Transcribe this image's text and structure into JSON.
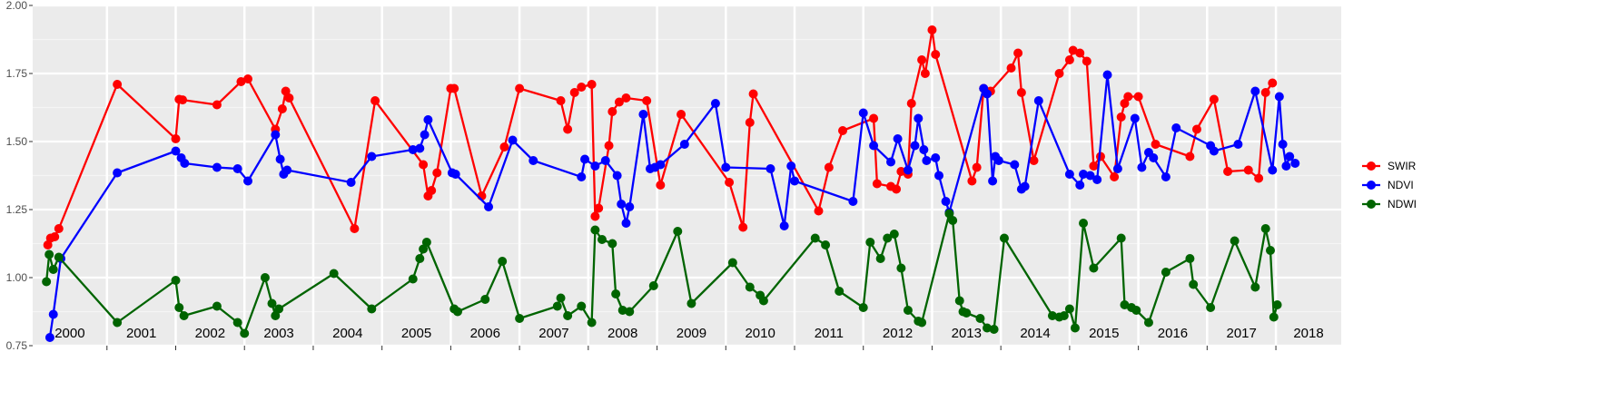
{
  "chart_data": {
    "type": "line",
    "title": "",
    "xlabel": "",
    "ylabel": "",
    "x_range": [
      1999.92,
      2018.95
    ],
    "ylim": [
      0.75,
      2.0
    ],
    "y_ticks": [
      0.75,
      1.0,
      1.25,
      1.5,
      1.75,
      2.0
    ],
    "y_tick_labels": [
      "0.75",
      "1.00",
      "1.25",
      "1.50",
      "1.75",
      "2.00"
    ],
    "year_boundaries": [
      2001,
      2002,
      2003,
      2004,
      2005,
      2006,
      2007,
      2008,
      2009,
      2010,
      2011,
      2012,
      2013,
      2014,
      2015,
      2016,
      2017,
      2018
    ],
    "year_labels": [
      {
        "x": 2000,
        "label": "2000"
      },
      {
        "x": 2001,
        "label": "2001"
      },
      {
        "x": 2002,
        "label": "2002"
      },
      {
        "x": 2003,
        "label": "2003"
      },
      {
        "x": 2004,
        "label": "2004"
      },
      {
        "x": 2005,
        "label": "2005"
      },
      {
        "x": 2006,
        "label": "2006"
      },
      {
        "x": 2007,
        "label": "2007"
      },
      {
        "x": 2008,
        "label": "2008"
      },
      {
        "x": 2009,
        "label": "2009"
      },
      {
        "x": 2010,
        "label": "2010"
      },
      {
        "x": 2011,
        "label": "2011"
      },
      {
        "x": 2012,
        "label": "2012"
      },
      {
        "x": 2013,
        "label": "2013"
      },
      {
        "x": 2014,
        "label": "2014"
      },
      {
        "x": 2015,
        "label": "2015"
      },
      {
        "x": 2016,
        "label": "2016"
      },
      {
        "x": 2017,
        "label": "2017"
      },
      {
        "x": 2018,
        "label": "2018"
      }
    ],
    "grid": true,
    "legend_position": "right",
    "series": [
      {
        "name": "SWIR",
        "color": "#ff0000",
        "points": [
          [
            2000.14,
            1.12
          ],
          [
            2000.18,
            1.145
          ],
          [
            2000.24,
            1.15
          ],
          [
            2000.3,
            1.18
          ],
          [
            2001.15,
            1.71
          ],
          [
            2002.0,
            1.51
          ],
          [
            2002.05,
            1.655
          ],
          [
            2002.1,
            1.653
          ],
          [
            2002.6,
            1.635
          ],
          [
            2002.95,
            1.72
          ],
          [
            2003.05,
            1.73
          ],
          [
            2003.45,
            1.545
          ],
          [
            2003.55,
            1.62
          ],
          [
            2003.6,
            1.685
          ],
          [
            2003.65,
            1.66
          ],
          [
            2004.6,
            1.18
          ],
          [
            2004.9,
            1.65
          ],
          [
            2005.6,
            1.415
          ],
          [
            2005.67,
            1.3
          ],
          [
            2005.72,
            1.32
          ],
          [
            2005.8,
            1.385
          ],
          [
            2006.0,
            1.695
          ],
          [
            2006.05,
            1.695
          ],
          [
            2006.45,
            1.3
          ],
          [
            2006.78,
            1.48
          ],
          [
            2007.0,
            1.695
          ],
          [
            2007.6,
            1.65
          ],
          [
            2007.7,
            1.545
          ],
          [
            2007.8,
            1.68
          ],
          [
            2007.9,
            1.7
          ],
          [
            2008.05,
            1.71
          ],
          [
            2008.1,
            1.225
          ],
          [
            2008.15,
            1.255
          ],
          [
            2008.3,
            1.485
          ],
          [
            2008.35,
            1.61
          ],
          [
            2008.45,
            1.645
          ],
          [
            2008.55,
            1.66
          ],
          [
            2008.85,
            1.65
          ],
          [
            2009.05,
            1.34
          ],
          [
            2009.35,
            1.6
          ],
          [
            2010.05,
            1.35
          ],
          [
            2010.25,
            1.185
          ],
          [
            2010.35,
            1.57
          ],
          [
            2010.4,
            1.675
          ],
          [
            2011.35,
            1.245
          ],
          [
            2011.5,
            1.405
          ],
          [
            2011.7,
            1.54
          ],
          [
            2012.15,
            1.585
          ],
          [
            2012.2,
            1.345
          ],
          [
            2012.4,
            1.335
          ],
          [
            2012.48,
            1.325
          ],
          [
            2012.55,
            1.39
          ],
          [
            2012.65,
            1.38
          ],
          [
            2012.7,
            1.64
          ],
          [
            2012.85,
            1.8
          ],
          [
            2012.9,
            1.75
          ],
          [
            2013.0,
            1.91
          ],
          [
            2013.05,
            1.82
          ],
          [
            2013.58,
            1.355
          ],
          [
            2013.65,
            1.405
          ],
          [
            2013.75,
            1.695
          ],
          [
            2013.85,
            1.685
          ],
          [
            2014.15,
            1.77
          ],
          [
            2014.25,
            1.825
          ],
          [
            2014.3,
            1.68
          ],
          [
            2014.48,
            1.43
          ],
          [
            2014.85,
            1.75
          ],
          [
            2015.0,
            1.8
          ],
          [
            2015.05,
            1.835
          ],
          [
            2015.15,
            1.825
          ],
          [
            2015.25,
            1.795
          ],
          [
            2015.35,
            1.41
          ],
          [
            2015.45,
            1.445
          ],
          [
            2015.65,
            1.37
          ],
          [
            2015.75,
            1.59
          ],
          [
            2015.8,
            1.64
          ],
          [
            2015.85,
            1.665
          ],
          [
            2016.0,
            1.665
          ],
          [
            2016.25,
            1.49
          ],
          [
            2016.75,
            1.445
          ],
          [
            2016.85,
            1.545
          ],
          [
            2017.1,
            1.655
          ],
          [
            2017.3,
            1.39
          ],
          [
            2017.6,
            1.395
          ],
          [
            2017.75,
            1.365
          ],
          [
            2017.85,
            1.68
          ],
          [
            2017.95,
            1.715
          ]
        ]
      },
      {
        "name": "NDVI",
        "color": "#0000ff",
        "points": [
          [
            2000.17,
            0.78
          ],
          [
            2000.22,
            0.865
          ],
          [
            2000.33,
            1.07
          ],
          [
            2001.15,
            1.385
          ],
          [
            2002.0,
            1.465
          ],
          [
            2002.08,
            1.44
          ],
          [
            2002.13,
            1.42
          ],
          [
            2002.6,
            1.405
          ],
          [
            2002.9,
            1.4
          ],
          [
            2003.05,
            1.355
          ],
          [
            2003.45,
            1.525
          ],
          [
            2003.52,
            1.435
          ],
          [
            2003.57,
            1.38
          ],
          [
            2003.62,
            1.395
          ],
          [
            2004.55,
            1.35
          ],
          [
            2004.85,
            1.445
          ],
          [
            2005.45,
            1.47
          ],
          [
            2005.55,
            1.475
          ],
          [
            2005.62,
            1.525
          ],
          [
            2005.67,
            1.58
          ],
          [
            2006.02,
            1.385
          ],
          [
            2006.07,
            1.38
          ],
          [
            2006.55,
            1.26
          ],
          [
            2006.9,
            1.505
          ],
          [
            2007.2,
            1.43
          ],
          [
            2007.9,
            1.37
          ],
          [
            2007.95,
            1.435
          ],
          [
            2008.1,
            1.41
          ],
          [
            2008.25,
            1.43
          ],
          [
            2008.42,
            1.375
          ],
          [
            2008.48,
            1.27
          ],
          [
            2008.55,
            1.2
          ],
          [
            2008.6,
            1.26
          ],
          [
            2008.8,
            1.6
          ],
          [
            2008.9,
            1.4
          ],
          [
            2008.97,
            1.405
          ],
          [
            2009.05,
            1.415
          ],
          [
            2009.4,
            1.49
          ],
          [
            2009.85,
            1.64
          ],
          [
            2010.0,
            1.405
          ],
          [
            2010.65,
            1.4
          ],
          [
            2010.85,
            1.19
          ],
          [
            2010.95,
            1.41
          ],
          [
            2011.0,
            1.355
          ],
          [
            2011.85,
            1.28
          ],
          [
            2012.0,
            1.605
          ],
          [
            2012.15,
            1.485
          ],
          [
            2012.4,
            1.425
          ],
          [
            2012.5,
            1.51
          ],
          [
            2012.65,
            1.395
          ],
          [
            2012.75,
            1.485
          ],
          [
            2012.8,
            1.585
          ],
          [
            2012.88,
            1.47
          ],
          [
            2012.92,
            1.43
          ],
          [
            2013.05,
            1.44
          ],
          [
            2013.1,
            1.375
          ],
          [
            2013.2,
            1.28
          ],
          [
            2013.25,
            1.24
          ],
          [
            2013.75,
            1.695
          ],
          [
            2013.8,
            1.675
          ],
          [
            2013.88,
            1.355
          ],
          [
            2013.92,
            1.445
          ],
          [
            2013.97,
            1.43
          ],
          [
            2014.2,
            1.415
          ],
          [
            2014.3,
            1.325
          ],
          [
            2014.35,
            1.335
          ],
          [
            2014.55,
            1.65
          ],
          [
            2015.0,
            1.38
          ],
          [
            2015.15,
            1.34
          ],
          [
            2015.2,
            1.38
          ],
          [
            2015.3,
            1.375
          ],
          [
            2015.4,
            1.36
          ],
          [
            2015.55,
            1.745
          ],
          [
            2015.7,
            1.4
          ],
          [
            2015.95,
            1.585
          ],
          [
            2016.05,
            1.405
          ],
          [
            2016.15,
            1.46
          ],
          [
            2016.22,
            1.44
          ],
          [
            2016.4,
            1.37
          ],
          [
            2016.55,
            1.55
          ],
          [
            2017.05,
            1.485
          ],
          [
            2017.1,
            1.465
          ],
          [
            2017.45,
            1.49
          ],
          [
            2017.7,
            1.685
          ],
          [
            2017.95,
            1.395
          ],
          [
            2018.05,
            1.665
          ],
          [
            2018.1,
            1.49
          ],
          [
            2018.15,
            1.41
          ],
          [
            2018.2,
            1.445
          ],
          [
            2018.28,
            1.42
          ]
        ]
      },
      {
        "name": "NDWI",
        "color": "#006400",
        "points": [
          [
            2000.12,
            0.985
          ],
          [
            2000.16,
            1.085
          ],
          [
            2000.22,
            1.03
          ],
          [
            2000.3,
            1.075
          ],
          [
            2001.15,
            0.835
          ],
          [
            2002.0,
            0.99
          ],
          [
            2002.05,
            0.89
          ],
          [
            2002.12,
            0.86
          ],
          [
            2002.6,
            0.895
          ],
          [
            2002.9,
            0.835
          ],
          [
            2003.0,
            0.795
          ],
          [
            2003.3,
            1.0
          ],
          [
            2003.4,
            0.905
          ],
          [
            2003.45,
            0.86
          ],
          [
            2003.5,
            0.885
          ],
          [
            2004.3,
            1.015
          ],
          [
            2004.85,
            0.885
          ],
          [
            2005.45,
            0.995
          ],
          [
            2005.55,
            1.07
          ],
          [
            2005.6,
            1.105
          ],
          [
            2005.65,
            1.13
          ],
          [
            2006.05,
            0.885
          ],
          [
            2006.1,
            0.875
          ],
          [
            2006.5,
            0.92
          ],
          [
            2006.75,
            1.06
          ],
          [
            2007.0,
            0.85
          ],
          [
            2007.55,
            0.895
          ],
          [
            2007.6,
            0.925
          ],
          [
            2007.7,
            0.86
          ],
          [
            2007.9,
            0.895
          ],
          [
            2008.05,
            0.835
          ],
          [
            2008.1,
            1.175
          ],
          [
            2008.2,
            1.14
          ],
          [
            2008.35,
            1.125
          ],
          [
            2008.4,
            0.94
          ],
          [
            2008.5,
            0.88
          ],
          [
            2008.6,
            0.875
          ],
          [
            2008.95,
            0.97
          ],
          [
            2009.3,
            1.17
          ],
          [
            2009.5,
            0.905
          ],
          [
            2010.1,
            1.055
          ],
          [
            2010.35,
            0.965
          ],
          [
            2010.5,
            0.935
          ],
          [
            2010.55,
            0.915
          ],
          [
            2011.3,
            1.145
          ],
          [
            2011.45,
            1.12
          ],
          [
            2011.65,
            0.95
          ],
          [
            2012.0,
            0.89
          ],
          [
            2012.1,
            1.13
          ],
          [
            2012.25,
            1.07
          ],
          [
            2012.35,
            1.145
          ],
          [
            2012.45,
            1.16
          ],
          [
            2012.55,
            1.035
          ],
          [
            2012.65,
            0.88
          ],
          [
            2012.8,
            0.84
          ],
          [
            2012.85,
            0.835
          ],
          [
            2013.25,
            1.235
          ],
          [
            2013.3,
            1.21
          ],
          [
            2013.4,
            0.915
          ],
          [
            2013.45,
            0.875
          ],
          [
            2013.5,
            0.87
          ],
          [
            2013.7,
            0.85
          ],
          [
            2013.8,
            0.815
          ],
          [
            2013.9,
            0.81
          ],
          [
            2014.05,
            1.145
          ],
          [
            2014.75,
            0.86
          ],
          [
            2014.85,
            0.855
          ],
          [
            2014.92,
            0.86
          ],
          [
            2015.0,
            0.885
          ],
          [
            2015.08,
            0.815
          ],
          [
            2015.2,
            1.2
          ],
          [
            2015.35,
            1.035
          ],
          [
            2015.75,
            1.145
          ],
          [
            2015.8,
            0.9
          ],
          [
            2015.9,
            0.89
          ],
          [
            2015.97,
            0.88
          ],
          [
            2016.15,
            0.835
          ],
          [
            2016.4,
            1.02
          ],
          [
            2016.75,
            1.07
          ],
          [
            2016.8,
            0.975
          ],
          [
            2017.05,
            0.89
          ],
          [
            2017.4,
            1.135
          ],
          [
            2017.7,
            0.965
          ],
          [
            2017.85,
            1.18
          ],
          [
            2017.92,
            1.1
          ],
          [
            2017.97,
            0.855
          ],
          [
            2018.02,
            0.9
          ]
        ]
      }
    ]
  }
}
